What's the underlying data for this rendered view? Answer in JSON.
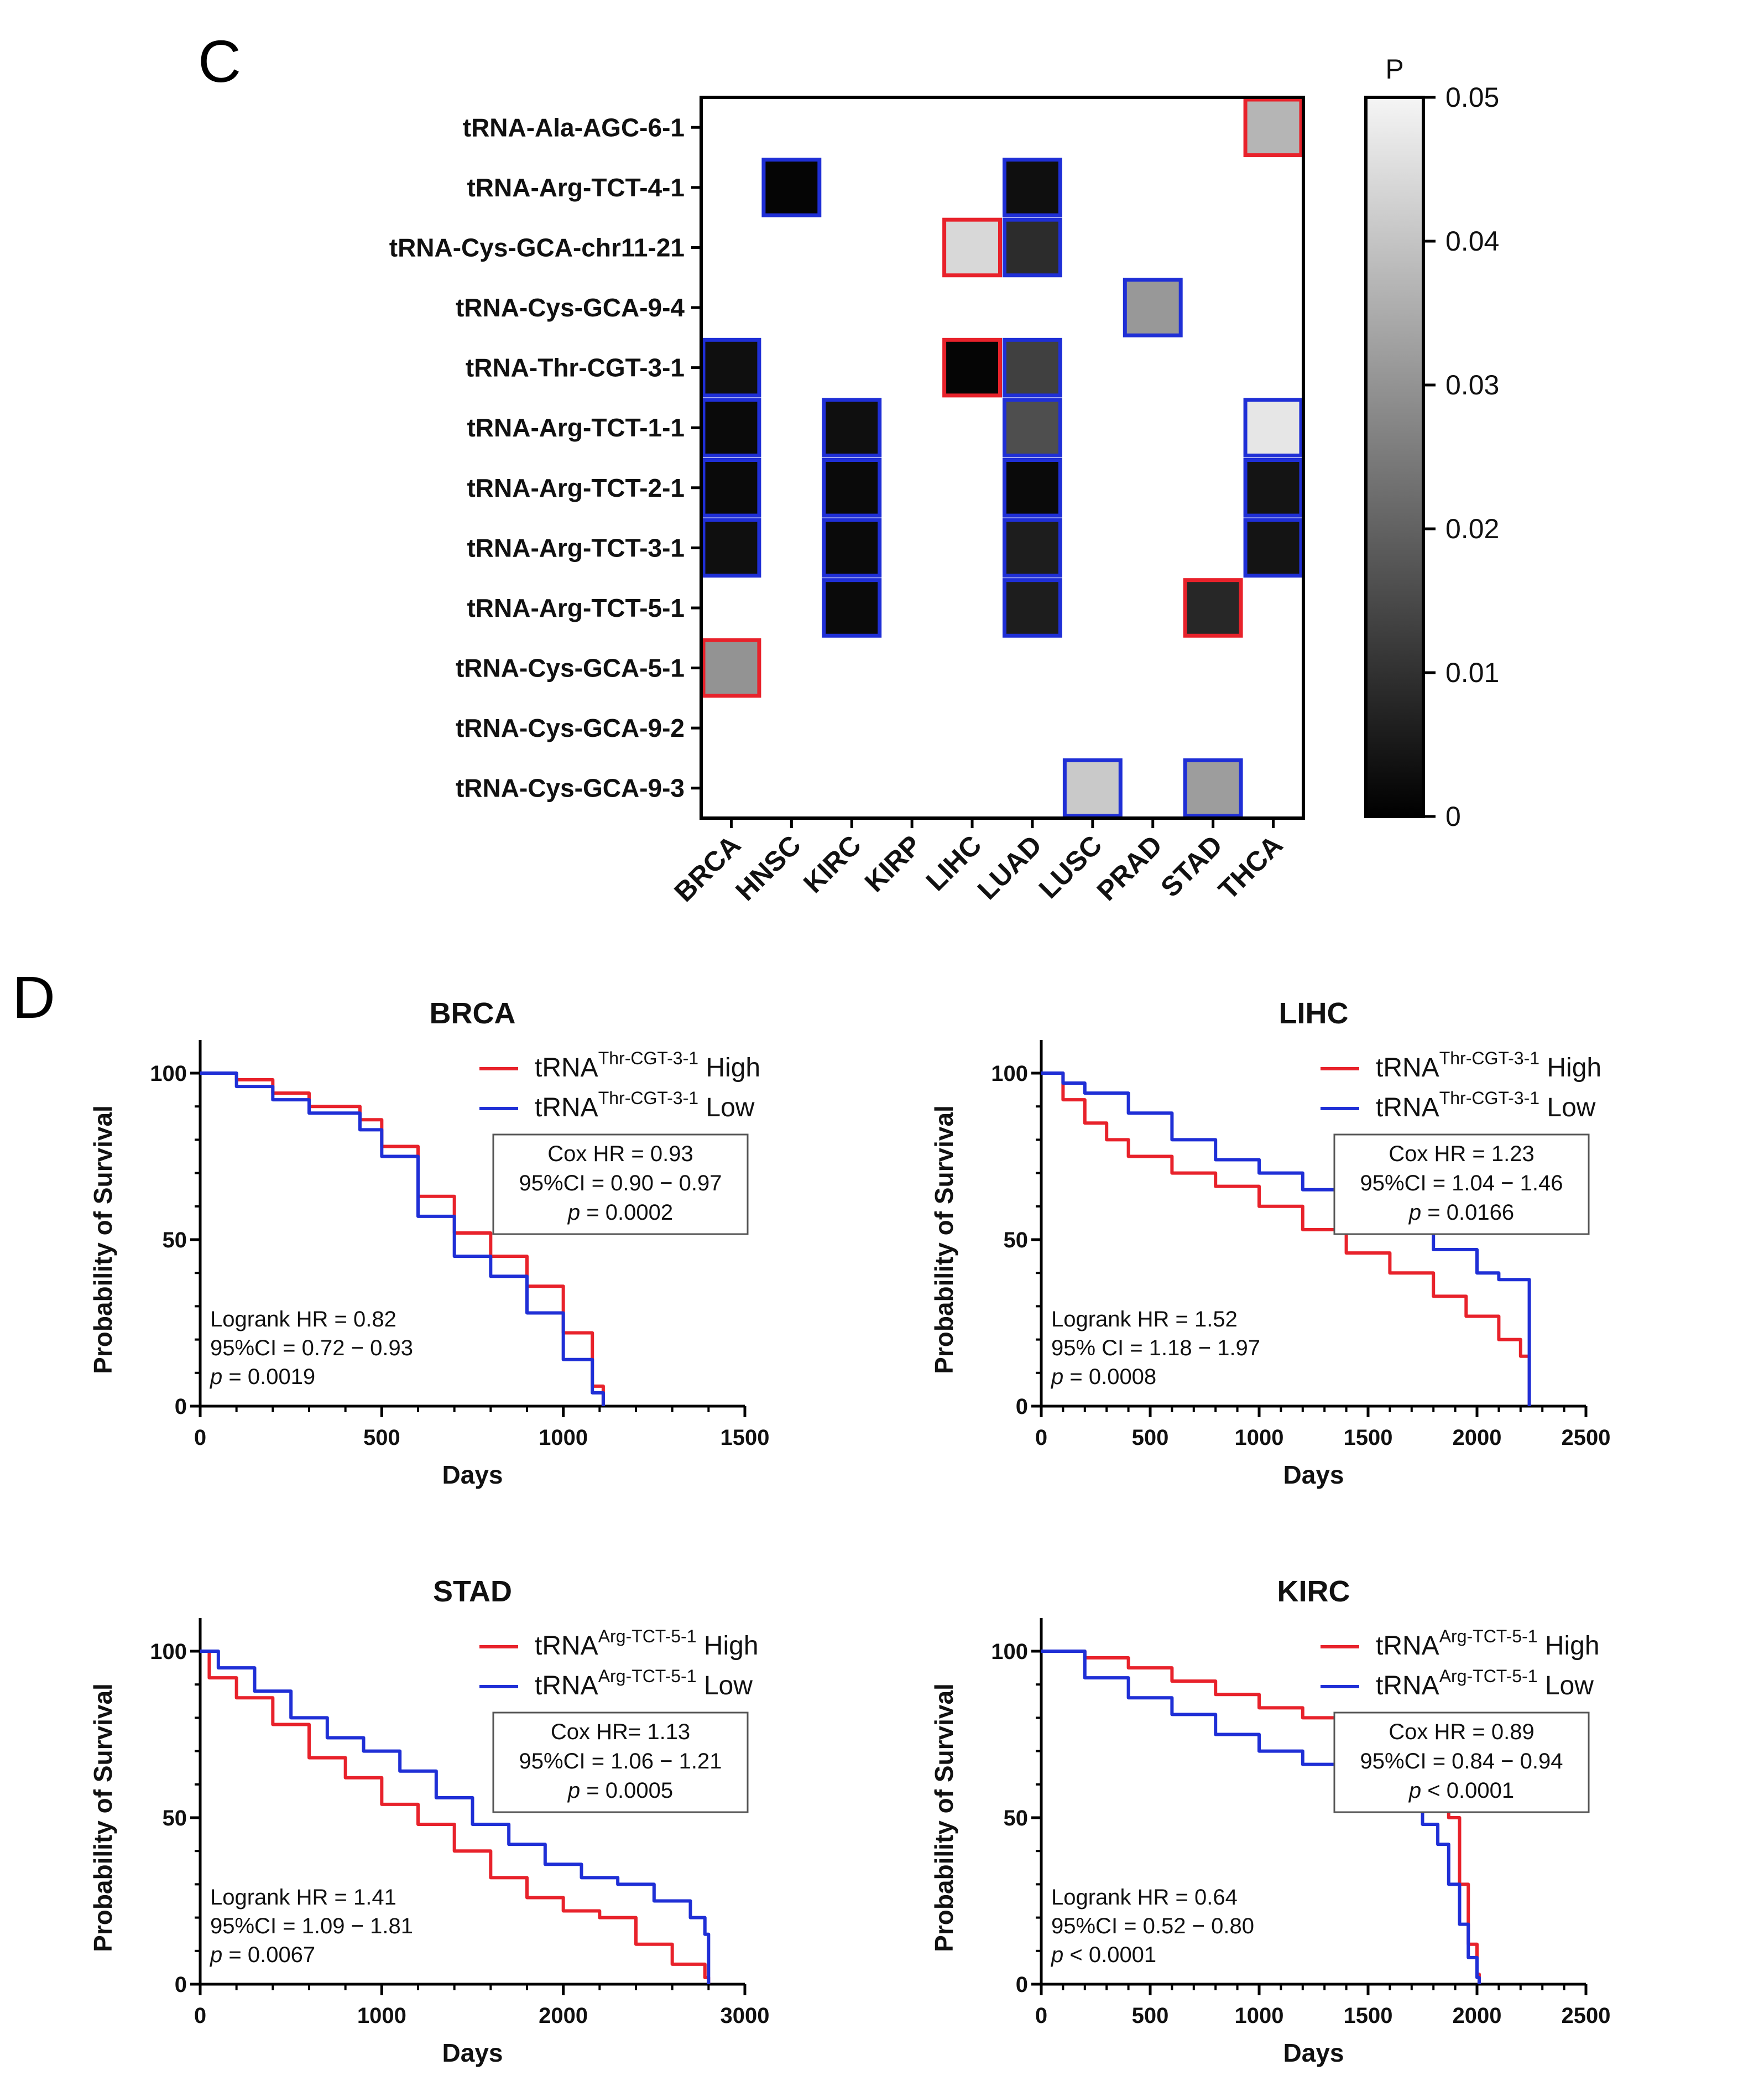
{
  "panel_c": {
    "label": "C"
  },
  "panel_d": {
    "label": "D"
  },
  "chart_data": [
    {
      "type": "heatmap",
      "title": "",
      "rows": [
        "tRNA-Ala-AGC-6-1",
        "tRNA-Arg-TCT-4-1",
        "tRNA-Cys-GCA-chr11-21",
        "tRNA-Cys-GCA-9-4",
        "tRNA-Thr-CGT-3-1",
        "tRNA-Arg-TCT-1-1",
        "tRNA-Arg-TCT-2-1",
        "tRNA-Arg-TCT-3-1",
        "tRNA-Arg-TCT-5-1",
        "tRNA-Cys-GCA-5-1",
        "tRNA-Cys-GCA-9-2",
        "tRNA-Cys-GCA-9-3"
      ],
      "columns": [
        "BRCA",
        "HNSC",
        "KIRC",
        "KIRP",
        "LIHC",
        "LUAD",
        "LUSC",
        "PRAD",
        "STAD",
        "THCA"
      ],
      "colorbar": {
        "label": "P",
        "range": [
          0,
          0.05
        ],
        "ticks": [
          "0",
          "0.01",
          "0.02",
          "0.03",
          "0.04",
          "0.05"
        ]
      },
      "border_colors": {
        "red": "#e8222b",
        "blue": "#1f2fd6"
      },
      "cells": [
        {
          "row": 0,
          "col": 9,
          "p": 0.037,
          "border": "red"
        },
        {
          "row": 1,
          "col": 1,
          "p": 0.001,
          "border": "blue"
        },
        {
          "row": 1,
          "col": 5,
          "p": 0.003,
          "border": "blue"
        },
        {
          "row": 2,
          "col": 4,
          "p": 0.044,
          "border": "red"
        },
        {
          "row": 2,
          "col": 5,
          "p": 0.009,
          "border": "blue"
        },
        {
          "row": 3,
          "col": 7,
          "p": 0.031,
          "border": "blue"
        },
        {
          "row": 4,
          "col": 0,
          "p": 0.003,
          "border": "blue"
        },
        {
          "row": 4,
          "col": 4,
          "p": 0.001,
          "border": "red"
        },
        {
          "row": 4,
          "col": 5,
          "p": 0.013,
          "border": "blue"
        },
        {
          "row": 5,
          "col": 0,
          "p": 0.002,
          "border": "blue"
        },
        {
          "row": 5,
          "col": 2,
          "p": 0.003,
          "border": "blue"
        },
        {
          "row": 5,
          "col": 5,
          "p": 0.016,
          "border": "blue"
        },
        {
          "row": 5,
          "col": 9,
          "p": 0.047,
          "border": "blue"
        },
        {
          "row": 6,
          "col": 0,
          "p": 0.002,
          "border": "blue"
        },
        {
          "row": 6,
          "col": 2,
          "p": 0.002,
          "border": "blue"
        },
        {
          "row": 6,
          "col": 5,
          "p": 0.002,
          "border": "blue"
        },
        {
          "row": 6,
          "col": 9,
          "p": 0.004,
          "border": "blue"
        },
        {
          "row": 7,
          "col": 0,
          "p": 0.003,
          "border": "blue"
        },
        {
          "row": 7,
          "col": 2,
          "p": 0.002,
          "border": "blue"
        },
        {
          "row": 7,
          "col": 5,
          "p": 0.006,
          "border": "blue"
        },
        {
          "row": 7,
          "col": 9,
          "p": 0.004,
          "border": "blue"
        },
        {
          "row": 8,
          "col": 2,
          "p": 0.002,
          "border": "blue"
        },
        {
          "row": 8,
          "col": 5,
          "p": 0.006,
          "border": "blue"
        },
        {
          "row": 8,
          "col": 8,
          "p": 0.008,
          "border": "red"
        },
        {
          "row": 9,
          "col": 0,
          "p": 0.03,
          "border": "red"
        },
        {
          "row": 11,
          "col": 6,
          "p": 0.041,
          "border": "blue"
        },
        {
          "row": 11,
          "col": 8,
          "p": 0.032,
          "border": "blue"
        }
      ]
    },
    {
      "type": "line",
      "title": "BRCA",
      "xlabel": "Days",
      "ylabel": "Probability of Survival",
      "xlim": [
        0,
        1500
      ],
      "ylim": [
        0,
        100
      ],
      "xticks": [
        0,
        500,
        1000,
        1500
      ],
      "yticks": [
        0,
        50,
        100
      ],
      "legend": {
        "prefix": "tRNA",
        "gene": "Thr-CGT-3-1",
        "position": "top-right"
      },
      "series": [
        {
          "name": "High",
          "color": "#e8222b",
          "x": [
            0,
            100,
            200,
            300,
            440,
            500,
            600,
            700,
            800,
            900,
            1000,
            1080,
            1110
          ],
          "y": [
            100,
            98,
            94,
            90,
            86,
            78,
            63,
            52,
            45,
            36,
            22,
            6,
            0
          ]
        },
        {
          "name": "Low",
          "color": "#1f2fd6",
          "x": [
            0,
            100,
            200,
            300,
            440,
            500,
            600,
            700,
            800,
            900,
            1000,
            1080,
            1110
          ],
          "y": [
            100,
            96,
            92,
            88,
            83,
            75,
            57,
            45,
            39,
            28,
            14,
            4,
            0
          ]
        }
      ],
      "cox": [
        "Cox HR = 0.93",
        "95%CI = 0.90 − 0.97",
        "= 0.0002"
      ],
      "logrank": [
        "Logrank HR = 0.82",
        "95%CI = 0.72 − 0.93",
        "= 0.0019"
      ]
    },
    {
      "type": "line",
      "title": "LIHC",
      "xlabel": "Days",
      "ylabel": "Probability of Survival",
      "xlim": [
        0,
        2500
      ],
      "ylim": [
        0,
        100
      ],
      "xticks": [
        0,
        500,
        1000,
        1500,
        2000,
        2500
      ],
      "yticks": [
        0,
        50,
        100
      ],
      "legend": {
        "prefix": "tRNA",
        "gene": "Thr-CGT-3-1",
        "position": "top-right"
      },
      "series": [
        {
          "name": "High",
          "color": "#e8222b",
          "x": [
            0,
            100,
            200,
            300,
            400,
            600,
            800,
            1000,
            1200,
            1400,
            1600,
            1800,
            1950,
            2100,
            2200,
            2240
          ],
          "y": [
            100,
            92,
            85,
            80,
            75,
            70,
            66,
            60,
            53,
            46,
            40,
            33,
            27,
            20,
            15,
            0
          ]
        },
        {
          "name": "Low",
          "color": "#1f2fd6",
          "x": [
            0,
            100,
            200,
            400,
            600,
            800,
            1000,
            1200,
            1400,
            1600,
            1800,
            2000,
            2100,
            2200,
            2240
          ],
          "y": [
            100,
            97,
            94,
            88,
            80,
            74,
            70,
            65,
            60,
            54,
            47,
            40,
            38,
            38,
            0
          ]
        }
      ],
      "cox": [
        "Cox HR = 1.23",
        "95%CI = 1.04 − 1.46",
        "= 0.0166"
      ],
      "logrank": [
        "Logrank HR = 1.52",
        "95% CI = 1.18 − 1.97",
        "= 0.0008"
      ]
    },
    {
      "type": "line",
      "title": "STAD",
      "xlabel": "Days",
      "ylabel": "Probability of Survival",
      "xlim": [
        0,
        3000
      ],
      "ylim": [
        0,
        100
      ],
      "xticks": [
        0,
        1000,
        2000,
        3000
      ],
      "yticks": [
        0,
        50,
        100
      ],
      "legend": {
        "prefix": "tRNA",
        "gene": "Arg-TCT-5-1",
        "position": "top-right"
      },
      "series": [
        {
          "name": "High",
          "color": "#e8222b",
          "x": [
            0,
            50,
            200,
            400,
            600,
            800,
            1000,
            1200,
            1400,
            1600,
            1800,
            2000,
            2200,
            2400,
            2600,
            2780,
            2800
          ],
          "y": [
            100,
            92,
            86,
            78,
            68,
            62,
            54,
            48,
            40,
            32,
            26,
            22,
            20,
            12,
            6,
            2,
            0
          ]
        },
        {
          "name": "Low",
          "color": "#1f2fd6",
          "x": [
            0,
            100,
            300,
            500,
            700,
            900,
            1100,
            1300,
            1500,
            1700,
            1900,
            2100,
            2300,
            2500,
            2700,
            2780,
            2800
          ],
          "y": [
            100,
            95,
            88,
            80,
            74,
            70,
            64,
            56,
            48,
            42,
            36,
            32,
            30,
            25,
            20,
            15,
            0
          ]
        }
      ],
      "cox": [
        "Cox HR= 1.13",
        "95%CI = 1.06 − 1.21",
        "= 0.0005"
      ],
      "logrank": [
        "Logrank HR = 1.41",
        "95%CI = 1.09 − 1.81",
        "= 0.0067"
      ]
    },
    {
      "type": "line",
      "title": "KIRC",
      "xlabel": "Days",
      "ylabel": "Probability of Survival",
      "xlim": [
        0,
        2500
      ],
      "ylim": [
        0,
        100
      ],
      "xticks": [
        0,
        500,
        1000,
        1500,
        2000,
        2500
      ],
      "yticks": [
        0,
        50,
        100
      ],
      "legend": {
        "prefix": "tRNA",
        "gene": "Arg-TCT-5-1",
        "position": "top-right"
      },
      "series": [
        {
          "name": "High",
          "color": "#e8222b",
          "x": [
            0,
            200,
            400,
            600,
            800,
            1000,
            1200,
            1400,
            1600,
            1750,
            1820,
            1870,
            1920,
            1960,
            2000,
            2010
          ],
          "y": [
            100,
            98,
            95,
            91,
            87,
            83,
            80,
            77,
            73,
            69,
            66,
            50,
            30,
            12,
            3,
            0
          ]
        },
        {
          "name": "Low",
          "color": "#1f2fd6",
          "x": [
            0,
            200,
            400,
            600,
            800,
            1000,
            1200,
            1400,
            1600,
            1750,
            1820,
            1870,
            1920,
            1960,
            2000,
            2010
          ],
          "y": [
            100,
            92,
            86,
            81,
            75,
            70,
            66,
            61,
            55,
            48,
            42,
            30,
            18,
            8,
            2,
            0
          ]
        }
      ],
      "cox": [
        "Cox HR = 0.89",
        "95%CI = 0.84 − 0.94",
        "< 0.0001"
      ],
      "logrank": [
        "Logrank HR = 0.64",
        "95%CI = 0.52 − 0.80",
        "< 0.0001"
      ]
    }
  ]
}
